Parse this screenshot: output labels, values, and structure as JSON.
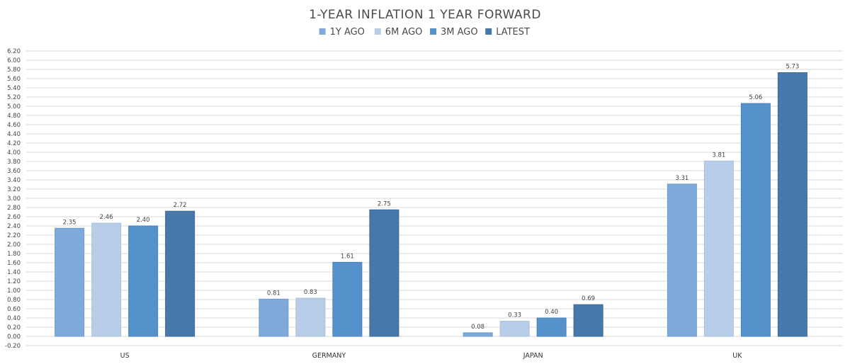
{
  "chart_data": {
    "type": "bar",
    "title": "1-YEAR INFLATION 1 YEAR FORWARD",
    "categories": [
      "US",
      "GERMANY",
      "JAPAN",
      "UK"
    ],
    "series": [
      {
        "name": "1Y AGO",
        "color": "#7fa9d8",
        "values": [
          2.35,
          0.81,
          0.08,
          3.31
        ]
      },
      {
        "name": "6M AGO",
        "color": "#b7cde8",
        "values": [
          2.46,
          0.83,
          0.33,
          3.81
        ]
      },
      {
        "name": "3M AGO",
        "color": "#5592cb",
        "values": [
          2.4,
          1.61,
          0.4,
          5.06
        ]
      },
      {
        "name": "LATEST",
        "color": "#4679aa",
        "values": [
          2.72,
          2.75,
          0.69,
          5.73
        ]
      }
    ],
    "ylim": [
      -0.2,
      6.2
    ],
    "ytick_step": 0.2,
    "grid": true,
    "legend": "top-center",
    "xlabel": "",
    "ylabel": ""
  }
}
